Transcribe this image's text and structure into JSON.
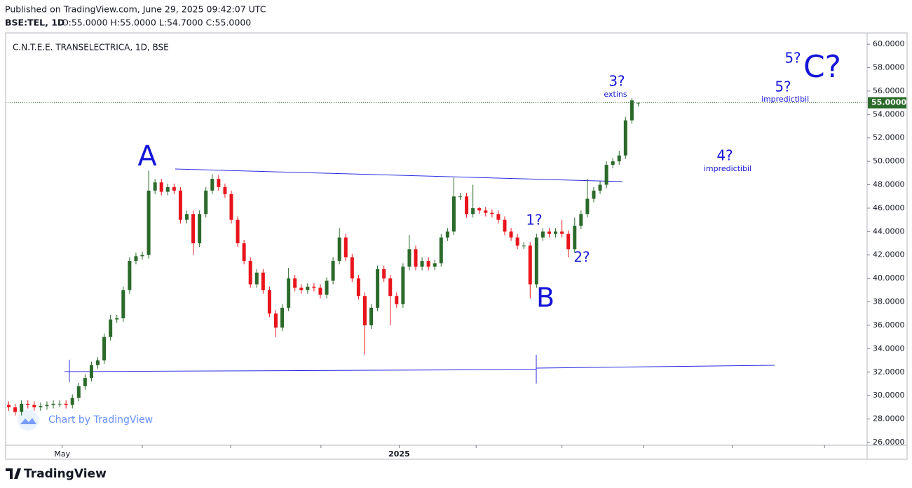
{
  "header": {
    "published": "Published on TradingView.com, June 29, 2025 09:42:07 UTC",
    "symbol": "BSE:TEL, 1D",
    "ohlc": "O:55.0000  H:55.0000  L:54.7000  C:55.0000"
  },
  "watermark": "Chart by TradingView",
  "footer": "TradingView",
  "chart_data": {
    "type": "candlestick",
    "title": "C.N.T.E.E. TRANSELECTRICA, 1D, BSE",
    "up_color": "#2b6a2b",
    "down_color": "#e8141b",
    "open": [
      29.2,
      29.0,
      28.6,
      29.3,
      29.2,
      29.0,
      29.1,
      29.2,
      29.3,
      29.3,
      29.2,
      29.8,
      30.8,
      31.5,
      32.6,
      33.0,
      35.0,
      36.5,
      36.6,
      39.0,
      41.5,
      41.9,
      42.0,
      47.5,
      48.2,
      47.4,
      47.8,
      47.5,
      45.0,
      45.5,
      43.0,
      45.5,
      47.5,
      48.5,
      47.8,
      47.2,
      45.0,
      43.0,
      41.5,
      39.5,
      40.5,
      39.0,
      37.0,
      35.8,
      37.5,
      40.0,
      39.2,
      39.0,
      39.3,
      39.2,
      38.6,
      39.8,
      41.5,
      43.5,
      41.8,
      40.0,
      38.5,
      36.0,
      37.5,
      40.8,
      40.0,
      38.5,
      37.8,
      41.0,
      42.5,
      41.0,
      41.5,
      41.0,
      41.3,
      43.5,
      44.0,
      47.0,
      47.0,
      45.5,
      46.0,
      45.8,
      45.6,
      45.5,
      45.0,
      44.0,
      43.5,
      42.8,
      42.8,
      39.5,
      43.5,
      44.0,
      43.8,
      44.0,
      43.8,
      42.5,
      44.5,
      45.5,
      46.8,
      47.5,
      48.0,
      49.7,
      50.0,
      50.5,
      53.5,
      55.0
    ],
    "high": [
      29.5,
      29.3,
      29.6,
      29.6,
      29.5,
      29.4,
      29.5,
      29.6,
      29.6,
      29.6,
      30.1,
      31.1,
      31.8,
      32.9,
      33.3,
      35.3,
      36.9,
      36.9,
      39.3,
      41.8,
      42.2,
      42.3,
      49.2,
      48.5,
      48.5,
      48.1,
      48.1,
      47.8,
      45.8,
      45.8,
      45.8,
      47.8,
      48.9,
      48.8,
      48.1,
      47.5,
      45.3,
      43.3,
      41.8,
      40.8,
      40.8,
      39.3,
      37.3,
      37.8,
      40.9,
      40.3,
      39.5,
      39.6,
      39.6,
      39.5,
      40.1,
      41.8,
      44.3,
      43.8,
      42.1,
      40.3,
      38.8,
      37.8,
      41.1,
      41.1,
      40.3,
      38.8,
      41.3,
      43.7,
      42.8,
      41.8,
      41.8,
      41.6,
      43.8,
      44.3,
      48.6,
      47.3,
      47.3,
      48.0,
      46.1,
      46.1,
      45.9,
      45.8,
      45.3,
      44.3,
      43.8,
      43.1,
      43.1,
      43.8,
      44.3,
      44.3,
      44.3,
      45.0,
      44.1,
      45.2,
      45.8,
      48.5,
      47.8,
      48.3,
      50.0,
      50.3,
      50.9,
      53.8,
      55.4,
      55.0
    ],
    "low": [
      28.7,
      28.3,
      28.3,
      28.9,
      28.7,
      28.7,
      28.8,
      28.9,
      29.0,
      28.9,
      28.9,
      29.5,
      30.5,
      31.2,
      32.3,
      32.7,
      34.7,
      36.2,
      36.3,
      38.7,
      41.2,
      41.6,
      41.7,
      47.2,
      47.1,
      47.1,
      47.2,
      44.7,
      44.7,
      42.0,
      42.7,
      45.2,
      47.2,
      47.5,
      46.9,
      44.7,
      42.7,
      41.2,
      39.2,
      39.2,
      38.7,
      36.7,
      35.0,
      35.5,
      37.2,
      38.9,
      38.7,
      38.7,
      38.9,
      38.3,
      38.3,
      39.5,
      41.2,
      41.5,
      39.7,
      38.2,
      33.5,
      35.7,
      37.2,
      39.7,
      36.0,
      37.5,
      37.5,
      40.7,
      40.7,
      40.7,
      40.7,
      40.7,
      41.0,
      43.2,
      43.7,
      46.7,
      45.2,
      45.2,
      45.5,
      45.3,
      45.2,
      44.7,
      43.7,
      43.2,
      42.5,
      42.5,
      38.3,
      39.2,
      43.2,
      43.5,
      43.5,
      43.5,
      41.8,
      42.2,
      44.2,
      45.2,
      46.5,
      47.2,
      47.7,
      49.4,
      49.7,
      50.2,
      53.2,
      54.7
    ],
    "close": [
      29.0,
      28.6,
      29.3,
      29.2,
      29.0,
      29.1,
      29.2,
      29.3,
      29.3,
      29.2,
      29.8,
      30.8,
      31.5,
      32.6,
      33.0,
      35.0,
      36.5,
      36.6,
      39.0,
      41.5,
      41.9,
      42.0,
      47.5,
      48.2,
      47.4,
      47.8,
      47.5,
      45.0,
      45.5,
      43.0,
      45.5,
      47.5,
      48.5,
      47.8,
      47.2,
      45.0,
      43.0,
      41.5,
      39.5,
      40.5,
      39.0,
      37.0,
      35.8,
      37.5,
      40.0,
      39.2,
      39.0,
      39.3,
      39.2,
      38.6,
      39.8,
      41.5,
      43.5,
      41.8,
      40.0,
      38.5,
      36.0,
      37.5,
      40.8,
      40.0,
      38.5,
      37.8,
      41.0,
      42.5,
      41.0,
      41.5,
      41.0,
      41.3,
      43.5,
      44.0,
      47.0,
      47.0,
      45.5,
      46.0,
      45.8,
      45.6,
      45.5,
      45.0,
      44.0,
      43.5,
      42.8,
      42.8,
      39.5,
      43.5,
      44.0,
      43.8,
      44.0,
      43.8,
      42.5,
      44.5,
      45.5,
      46.8,
      47.5,
      48.0,
      49.7,
      50.0,
      50.5,
      53.5,
      55.2,
      55.0
    ],
    "xlim": [
      -0.5,
      135
    ],
    "xticks": [
      {
        "value": 8.4,
        "label": "May"
      },
      {
        "value": 61.4,
        "label": "2025"
      }
    ],
    "x_minor_ticks": [
      21,
      34.9,
      49.1,
      73.5,
      87,
      99.8,
      113.8,
      128.3
    ],
    "ylim": [
      25.76,
      60.96
    ],
    "yticks": [
      {
        "value": 26,
        "label": "26.0000"
      },
      {
        "value": 28,
        "label": "28.0000"
      },
      {
        "value": 30,
        "label": "30.0000"
      },
      {
        "value": 32,
        "label": "32.0000"
      },
      {
        "value": 34,
        "label": "34.0000"
      },
      {
        "value": 36,
        "label": "36.0000"
      },
      {
        "value": 38,
        "label": "38.0000"
      },
      {
        "value": 40,
        "label": "40.0000"
      },
      {
        "value": 42,
        "label": "42.0000"
      },
      {
        "value": 44,
        "label": "44.0000"
      },
      {
        "value": 46,
        "label": "46.0000"
      },
      {
        "value": 48,
        "label": "48.0000"
      },
      {
        "value": 50,
        "label": "50.0000"
      },
      {
        "value": 52,
        "label": "52.0000"
      },
      {
        "value": 54,
        "label": "54.0000"
      },
      {
        "value": 56,
        "label": "56.0000"
      },
      {
        "value": 58,
        "label": "58.0000"
      },
      {
        "value": 60,
        "label": "60.0000"
      }
    ],
    "last_price": {
      "value": 55,
      "label": "55.0000"
    },
    "grid": false,
    "annotations": [
      "A",
      "B",
      "C?",
      "5?",
      "3?",
      "extins",
      "5?",
      "impredictibil",
      "4?",
      "impredictibil",
      "1?",
      "2?"
    ]
  }
}
